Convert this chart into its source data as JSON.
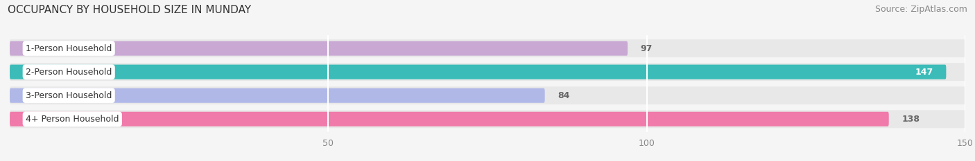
{
  "title": "OCCUPANCY BY HOUSEHOLD SIZE IN MUNDAY",
  "source": "Source: ZipAtlas.com",
  "categories": [
    "1-Person Household",
    "2-Person Household",
    "3-Person Household",
    "4+ Person Household"
  ],
  "values": [
    97,
    147,
    84,
    138
  ],
  "bar_colors": [
    "#c9a8d4",
    "#3bbcb8",
    "#b0b8e8",
    "#f07aaa"
  ],
  "bar_bg_color": "#e8e8e8",
  "xlim": [
    0,
    150
  ],
  "xticks": [
    50,
    100,
    150
  ],
  "label_bg_color": "#ffffff",
  "title_fontsize": 11,
  "source_fontsize": 9,
  "tick_fontsize": 9,
  "bar_label_fontsize": 9,
  "category_fontsize": 9,
  "bar_height": 0.62,
  "background_color": "#f5f5f5",
  "value_threshold": 145
}
